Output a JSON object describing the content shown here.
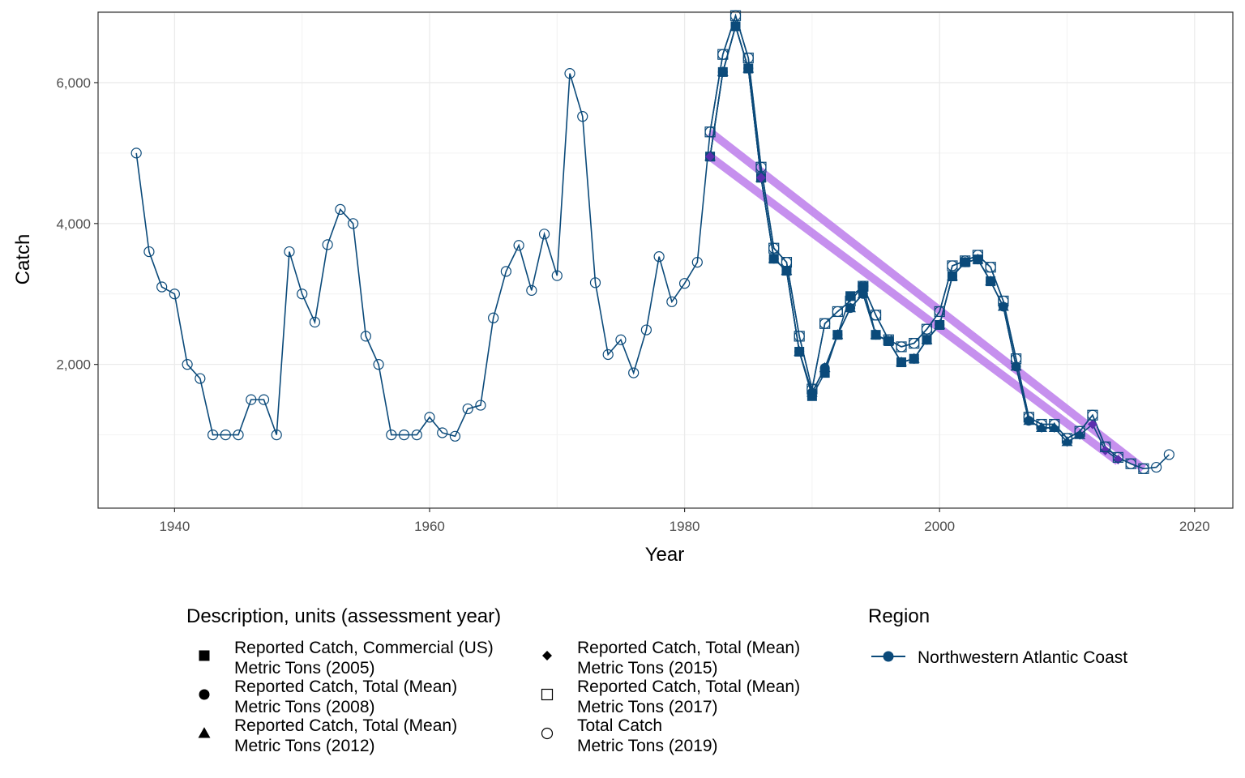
{
  "chart_data": {
    "type": "line",
    "xlabel": "Year",
    "ylabel": "Catch",
    "xlim": [
      1934,
      2023
    ],
    "ylim": [
      -40,
      7000
    ],
    "x_ticks": [
      1940,
      1960,
      1980,
      2000,
      2020
    ],
    "x_tick_labels": [
      "1940",
      "1960",
      "1980",
      "2000",
      "2020"
    ],
    "y_ticks": [
      2000,
      4000,
      6000
    ],
    "y_tick_labels": [
      "2,000",
      "4,000",
      "6,000"
    ],
    "grid": true,
    "line_color": "#0b4a7a",
    "trend_color": "#b36be8",
    "series": [
      {
        "name": "Reported Catch, Commercial (US) Metric Tons (2005)",
        "marker": "filled-square",
        "x": [
          1982,
          1983,
          1984,
          1985,
          1986,
          1987,
          1988,
          1989,
          1990,
          1991,
          1992,
          1993,
          1994,
          1995,
          1996,
          1997,
          1998,
          1999,
          2000,
          2001,
          2002,
          2003,
          2004
        ],
        "y": [
          4950,
          6150,
          6800,
          6200,
          4650,
          3500,
          3330,
          2180,
          1550,
          1880,
          2420,
          2970,
          3100,
          2420,
          2330,
          2030,
          2080,
          2350,
          2560,
          3250,
          3450,
          3490,
          3180
        ]
      },
      {
        "name": "Reported Catch, Total (Mean) Metric Tons (2008)",
        "marker": "filled-circle",
        "x": [
          1982,
          1983,
          1984,
          1985,
          1986,
          1987,
          1988,
          1989,
          1990,
          1991,
          1992,
          1993,
          1994,
          1995,
          1996,
          1997,
          1998,
          1999,
          2000,
          2001,
          2002,
          2003,
          2004,
          2005,
          2006,
          2007
        ],
        "y": [
          4950,
          6150,
          6800,
          6200,
          4650,
          3500,
          3330,
          2180,
          1600,
          1950,
          2420,
          2800,
          3000,
          2420,
          2330,
          2030,
          2080,
          2350,
          2560,
          3250,
          3450,
          3490,
          3180,
          2820,
          1970,
          1200
        ]
      },
      {
        "name": "Reported Catch, Total (Mean) Metric Tons (2012)",
        "marker": "filled-triangle",
        "x": [
          1982,
          1983,
          1984,
          1985,
          1986,
          1987,
          1988,
          1989,
          1990,
          1991,
          1992,
          1993,
          1994,
          1995,
          1996,
          1997,
          1998,
          1999,
          2000,
          2001,
          2002,
          2003,
          2004,
          2005,
          2006,
          2007,
          2008,
          2009,
          2010,
          2011
        ],
        "y": [
          4950,
          6150,
          6800,
          6200,
          4650,
          3500,
          3330,
          2180,
          1600,
          1950,
          2420,
          2800,
          3000,
          2420,
          2330,
          2030,
          2080,
          2350,
          2560,
          3250,
          3450,
          3490,
          3180,
          2820,
          1970,
          1200,
          1100,
          1100,
          900,
          1000
        ]
      },
      {
        "name": "Reported Catch, Total (Mean) Metric Tons (2015)",
        "marker": "filled-diamond",
        "x": [
          1982,
          1983,
          1984,
          1985,
          1986,
          1987,
          1988,
          1989,
          1990,
          1991,
          1992,
          1993,
          1994,
          1995,
          1996,
          1997,
          1998,
          1999,
          2000,
          2001,
          2002,
          2003,
          2004,
          2005,
          2006,
          2007,
          2008,
          2009,
          2010,
          2011,
          2012,
          2013,
          2014
        ],
        "y": [
          4950,
          6150,
          6800,
          6200,
          4650,
          3500,
          3330,
          2180,
          1600,
          1950,
          2420,
          2800,
          3000,
          2420,
          2330,
          2030,
          2080,
          2350,
          2560,
          3250,
          3450,
          3490,
          3180,
          2820,
          1970,
          1200,
          1100,
          1100,
          900,
          1000,
          1150,
          780,
          650
        ]
      },
      {
        "name": "Reported Catch, Total (Mean) Metric Tons (2017)",
        "marker": "open-square",
        "x": [
          1982,
          1983,
          1984,
          1985,
          1986,
          1987,
          1988,
          1989,
          1990,
          1991,
          1992,
          1993,
          1994,
          1995,
          1996,
          1997,
          1998,
          1999,
          2000,
          2001,
          2002,
          2003,
          2004,
          2005,
          2006,
          2007,
          2008,
          2009,
          2010,
          2011,
          2012,
          2013,
          2014,
          2015,
          2016
        ],
        "y": [
          5300,
          6400,
          6950,
          6350,
          4800,
          3650,
          3450,
          2400,
          1650,
          2580,
          2750,
          2900,
          3110,
          2700,
          2350,
          2250,
          2300,
          2500,
          2750,
          3400,
          3470,
          3550,
          3380,
          2900,
          2080,
          1250,
          1150,
          1150,
          950,
          1050,
          1280,
          830,
          680,
          590,
          520
        ]
      },
      {
        "name": "Total Catch Metric Tons (2019)",
        "marker": "open-circle",
        "x": [
          1937,
          1938,
          1939,
          1940,
          1941,
          1942,
          1943,
          1944,
          1945,
          1946,
          1947,
          1948,
          1949,
          1950,
          1951,
          1952,
          1953,
          1954,
          1955,
          1956,
          1957,
          1958,
          1959,
          1960,
          1961,
          1962,
          1963,
          1964,
          1965,
          1966,
          1967,
          1968,
          1969,
          1970,
          1971,
          1972,
          1973,
          1974,
          1975,
          1976,
          1977,
          1978,
          1979,
          1980,
          1981,
          1982,
          1983,
          1984,
          1985,
          1986,
          1987,
          1988,
          1989,
          1990,
          1991,
          1992,
          1993,
          1994,
          1995,
          1996,
          1997,
          1998,
          1999,
          2000,
          2001,
          2002,
          2003,
          2004,
          2005,
          2006,
          2007,
          2008,
          2009,
          2010,
          2011,
          2012,
          2013,
          2014,
          2015,
          2016,
          2017,
          2018
        ],
        "y": [
          5000,
          3600,
          3100,
          3000,
          2000,
          1800,
          1000,
          1000,
          1000,
          1500,
          1500,
          1000,
          3600,
          3000,
          2600,
          3700,
          4200,
          4000,
          2400,
          2000,
          1000,
          1000,
          1000,
          1250,
          1030,
          980,
          1370,
          1420,
          2660,
          3320,
          3690,
          3050,
          3850,
          3260,
          6130,
          5520,
          3160,
          2140,
          2350,
          1880,
          2490,
          3530,
          2890,
          3150,
          3450,
          5300,
          6400,
          6950,
          6350,
          4800,
          3650,
          3450,
          2400,
          1650,
          2580,
          2750,
          2900,
          3110,
          2700,
          2350,
          2250,
          2300,
          2500,
          2750,
          3400,
          3470,
          3550,
          3380,
          2900,
          2080,
          1250,
          1150,
          1150,
          950,
          1050,
          1280,
          830,
          680,
          590,
          520,
          540,
          720
        ]
      }
    ],
    "trend_lines": [
      {
        "x": [
          1982,
          2014
        ],
        "y": [
          4950,
          620
        ]
      },
      {
        "x": [
          1982,
          2016
        ],
        "y": [
          5300,
          520
        ]
      }
    ],
    "legend": {
      "title": "Description, units (assessment year)",
      "placement": "bottom",
      "items": [
        {
          "line1": "Reported Catch, Commercial (US)",
          "line2": "Metric Tons (2005)",
          "marker": "filled-square"
        },
        {
          "line1": "Reported Catch, Total (Mean)",
          "line2": "Metric Tons (2008)",
          "marker": "filled-circle"
        },
        {
          "line1": "Reported Catch, Total (Mean)",
          "line2": "Metric Tons (2012)",
          "marker": "filled-triangle"
        },
        {
          "line1": "Reported Catch, Total (Mean)",
          "line2": "Metric Tons (2015)",
          "marker": "filled-diamond"
        },
        {
          "line1": "Reported Catch, Total (Mean)",
          "line2": "Metric Tons (2017)",
          "marker": "open-square"
        },
        {
          "line1": "Total Catch",
          "line2": "Metric Tons (2019)",
          "marker": "open-circle"
        }
      ]
    },
    "region_legend": {
      "title": "Region",
      "items": [
        {
          "label": "Northwestern Atlantic Coast"
        }
      ]
    }
  }
}
